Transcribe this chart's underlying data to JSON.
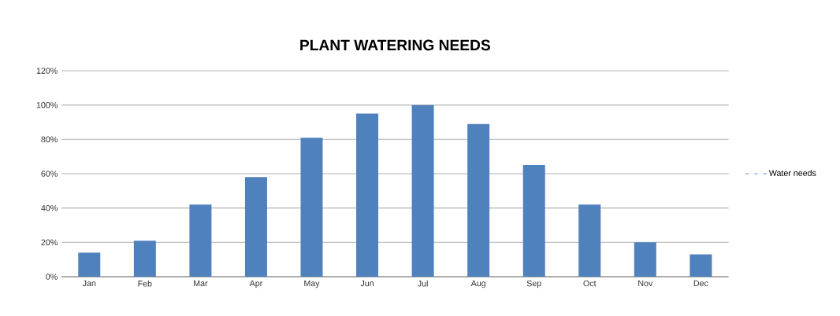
{
  "chart_data": {
    "type": "bar",
    "title": "PLANT WATERING NEEDS",
    "categories": [
      "Jan",
      "Feb",
      "Mar",
      "Apr",
      "May",
      "Jun",
      "Jul",
      "Aug",
      "Sep",
      "Oct",
      "Nov",
      "Dec"
    ],
    "series": [
      {
        "name": "Water needs",
        "color": "#4f81bd",
        "values": [
          14,
          21,
          42,
          58,
          81,
          95,
          100,
          89,
          65,
          42,
          20,
          13
        ]
      }
    ],
    "ylim": [
      0,
      120
    ],
    "yticks": [
      {
        "value": 0,
        "label": "0%"
      },
      {
        "value": 20,
        "label": "20%"
      },
      {
        "value": 40,
        "label": "40%"
      },
      {
        "value": 60,
        "label": "60%"
      },
      {
        "value": 80,
        "label": "80%"
      },
      {
        "value": 100,
        "label": "100%"
      },
      {
        "value": 120,
        "label": "120%"
      }
    ],
    "grid": "y",
    "legend": "right"
  }
}
